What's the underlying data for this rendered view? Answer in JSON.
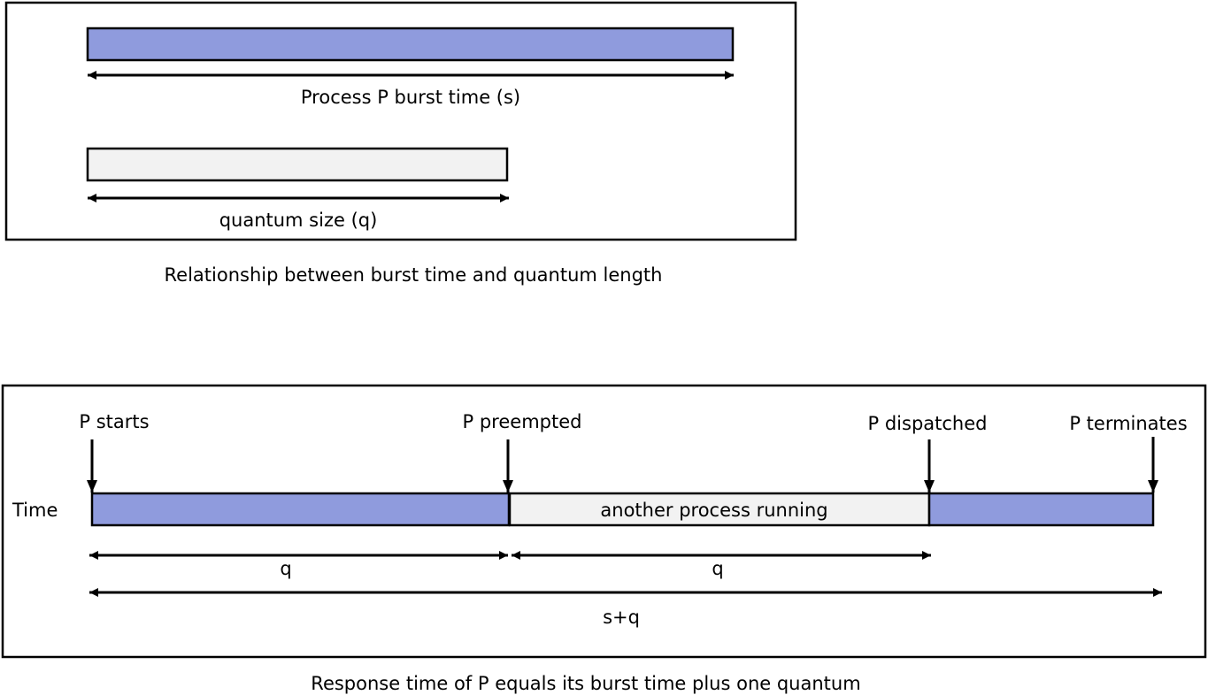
{
  "colors": {
    "burst_fill": "#8f9bdd",
    "quantum_fill": "#f2f2f2",
    "stroke": "#000000"
  },
  "top_panel": {
    "burst_label": "Process P burst time (s)",
    "quantum_label": "quantum size (q)",
    "caption": "Relationship between burst time and quantum length"
  },
  "bottom_panel": {
    "time_label": "Time",
    "events": {
      "starts": "P starts",
      "preempted": "P preempted",
      "dispatched": "P dispatched",
      "terminates": "P terminates"
    },
    "other_process_label": "another process running",
    "q1_label": "q",
    "q2_label": "q",
    "total_label": "s+q",
    "caption": "Response time of P equals its burst time plus one quantum"
  }
}
